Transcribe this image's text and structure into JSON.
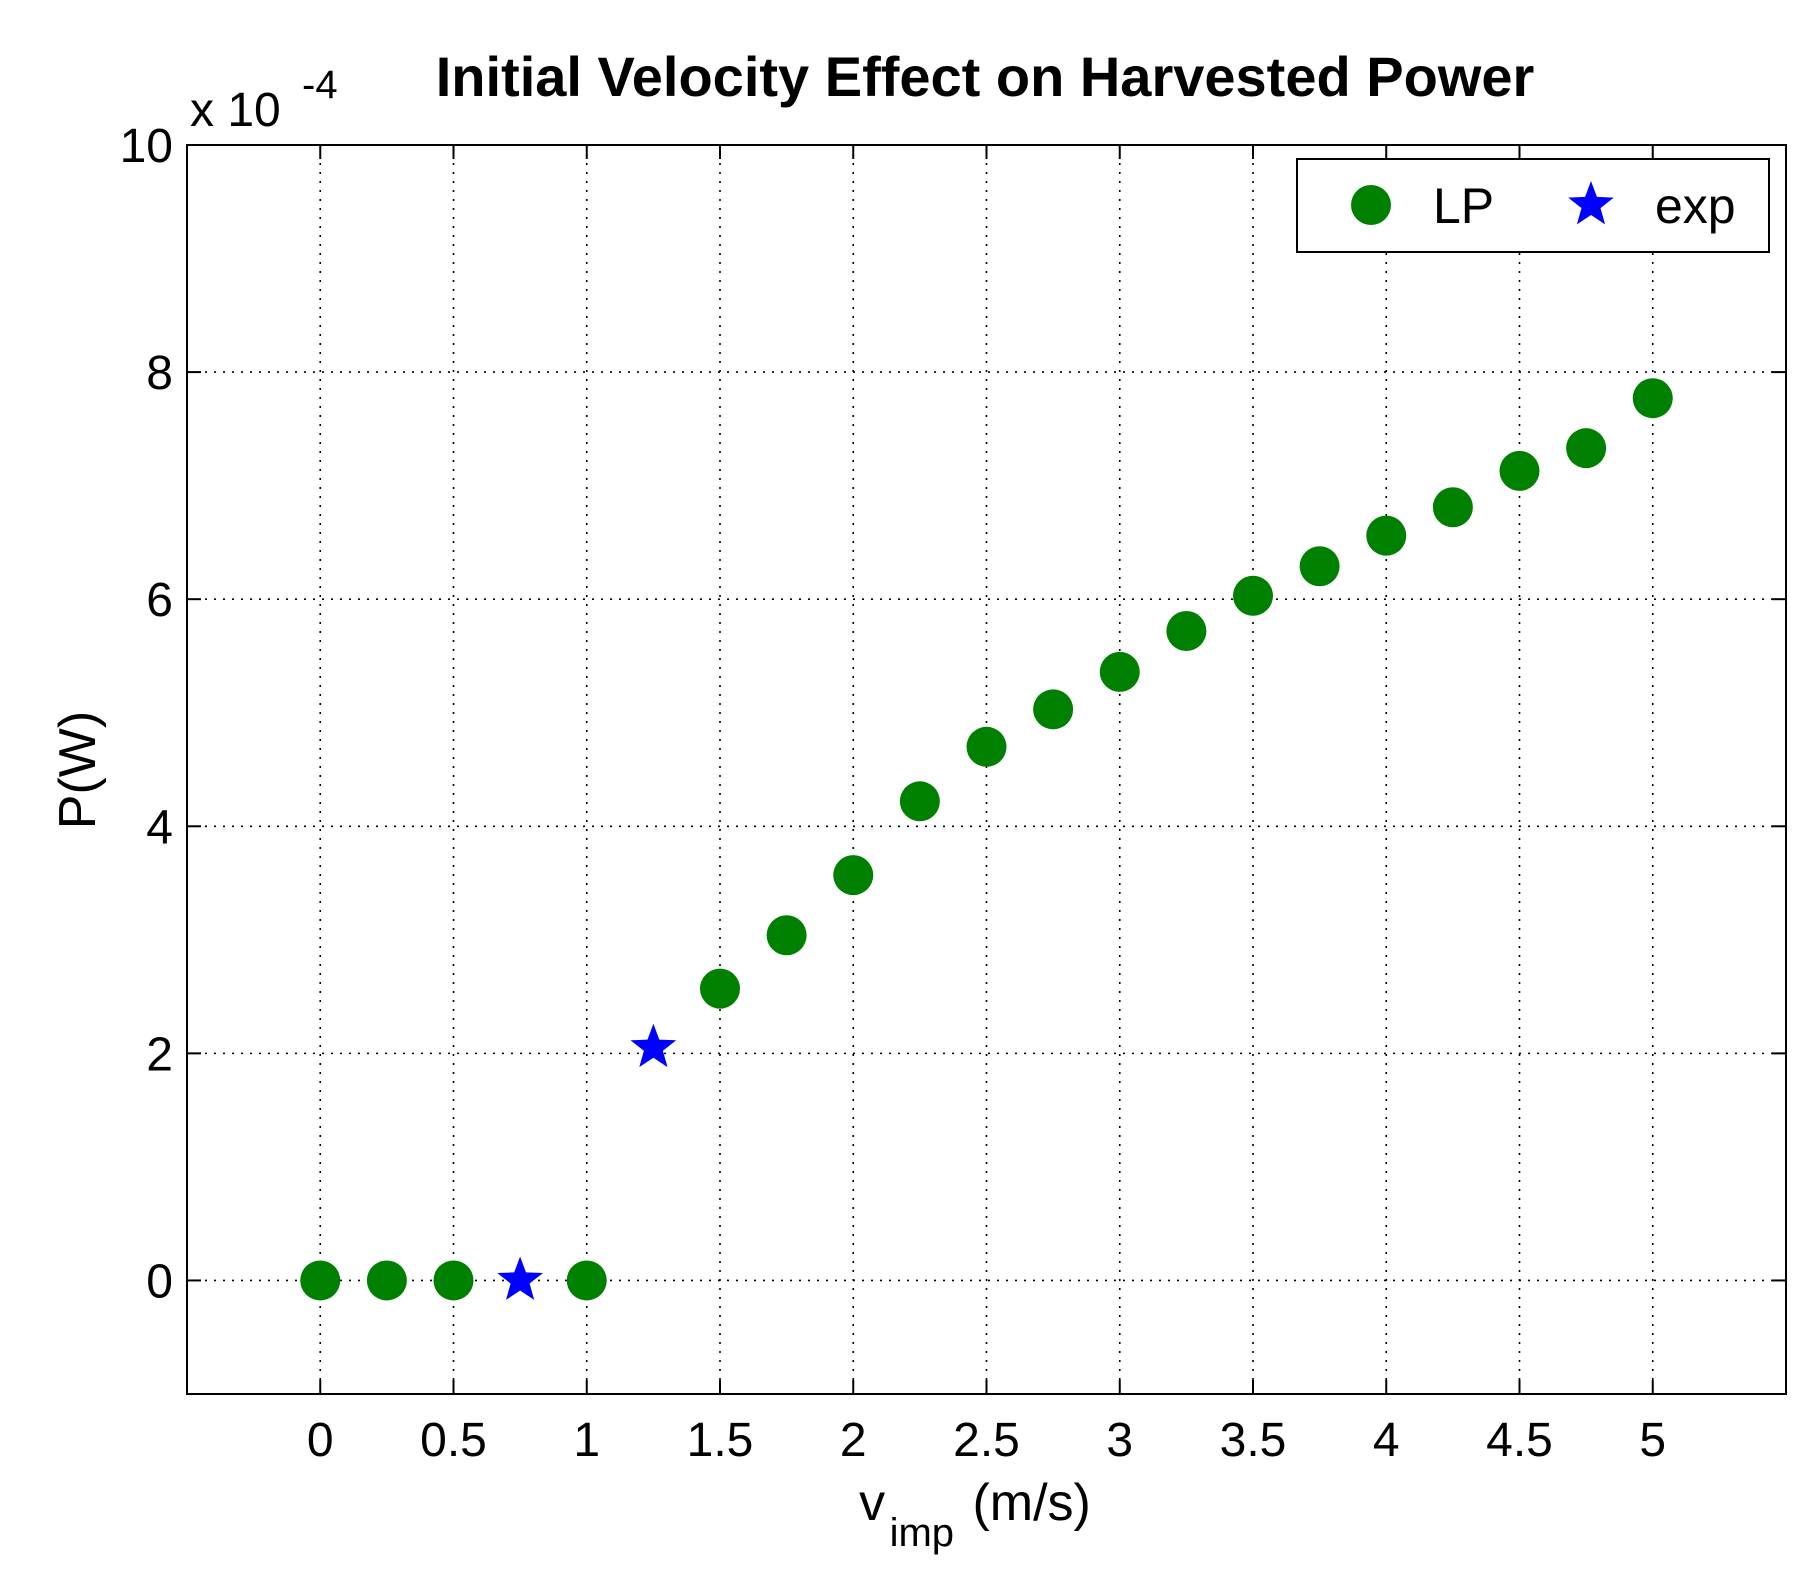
{
  "chart_data": {
    "type": "scatter",
    "title": "Initial Velocity Effect on Harvested Power",
    "xlabel": "v",
    "xlabel_subscript": "imp",
    "xlabel_unit": "(m/s)",
    "ylabel": "P(W)",
    "y_scale_label": "x 10",
    "y_scale_exponent": "-4",
    "xlim": [
      -0.5,
      5.5
    ],
    "ylim": [
      -1,
      10
    ],
    "x_ticks": [
      0,
      0.5,
      1,
      1.5,
      2,
      2.5,
      3,
      3.5,
      4,
      4.5,
      5
    ],
    "x_tick_labels": [
      "0",
      "0.5",
      "1",
      "1.5",
      "2",
      "2.5",
      "3",
      "3.5",
      "4",
      "4.5",
      "5"
    ],
    "y_ticks": [
      0,
      2,
      4,
      6,
      8,
      10
    ],
    "y_tick_labels": [
      "0",
      "2",
      "4",
      "6",
      "8",
      "10"
    ],
    "grid": true,
    "legend_position": "top-right",
    "series": [
      {
        "name": "LP",
        "marker": "circle",
        "color": "#008000",
        "x": [
          0,
          0.25,
          0.5,
          1,
          1.5,
          1.75,
          2,
          2.25,
          2.5,
          2.75,
          3,
          3.25,
          3.5,
          3.75,
          4,
          4.25,
          4.5,
          4.75,
          5
        ],
        "y": [
          0,
          0,
          0,
          0,
          2.57,
          3.04,
          3.57,
          4.22,
          4.7,
          5.03,
          5.36,
          5.72,
          6.03,
          6.29,
          6.56,
          6.81,
          7.13,
          7.33,
          7.77
        ]
      },
      {
        "name": "exp",
        "marker": "star",
        "color": "#0000ff",
        "x": [
          0.75,
          1.25
        ],
        "y": [
          0,
          2.05
        ]
      }
    ]
  }
}
